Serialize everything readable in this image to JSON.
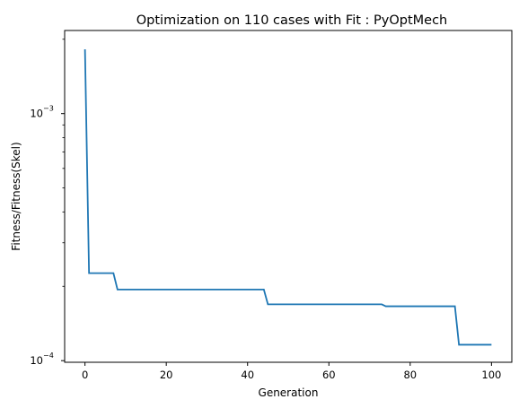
{
  "chart_data": {
    "type": "line",
    "title": "Optimization on 110 cases with Fit : PyOptMech",
    "xlabel": "Generation",
    "ylabel": "Fitness/Fitness(Skel)",
    "yscale": "log",
    "xlim": [
      -5,
      105
    ],
    "ylim": [
      9.85e-05,
      0.00217
    ],
    "grid": false,
    "x_ticks": [
      0,
      20,
      40,
      60,
      80,
      100
    ],
    "y_ticks": [
      {
        "value": 0.001,
        "base": "10",
        "exponent": "−3"
      },
      {
        "value": 0.0001,
        "base": "10",
        "exponent": "−4"
      }
    ],
    "series": [
      {
        "color": "#1f77b4",
        "points": [
          [
            0,
            0.00182
          ],
          [
            1,
            0.000226
          ],
          [
            7,
            0.000226
          ],
          [
            8,
            0.000194
          ],
          [
            44,
            0.000194
          ],
          [
            45,
            0.000169
          ],
          [
            73,
            0.000169
          ],
          [
            74,
            0.000166
          ],
          [
            91,
            0.000166
          ],
          [
            92,
            0.000116
          ],
          [
            100,
            0.000116
          ]
        ]
      }
    ]
  }
}
